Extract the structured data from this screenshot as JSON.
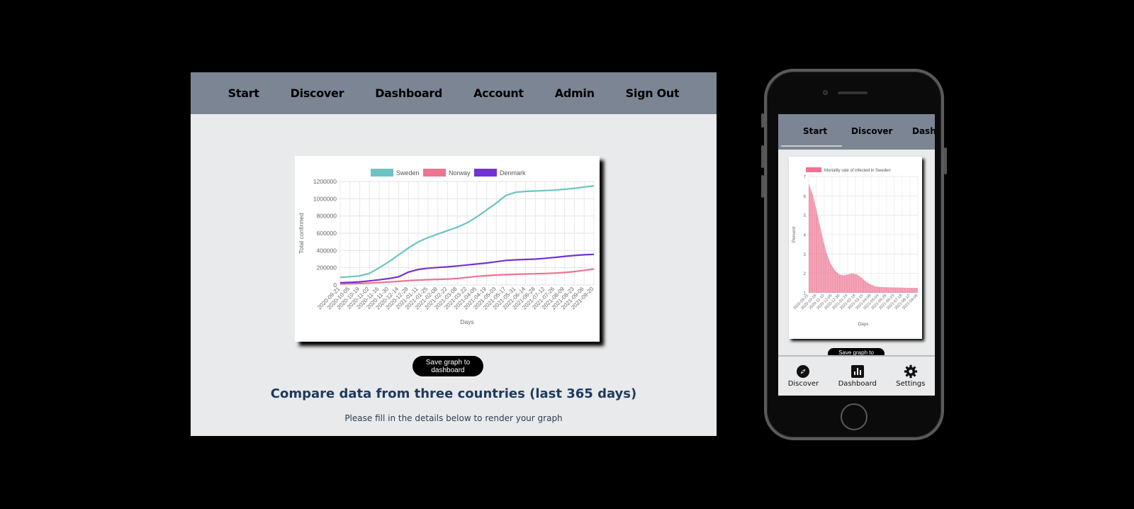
{
  "desktop": {
    "nav": [
      "Start",
      "Discover",
      "Dashboard",
      "Account",
      "Admin",
      "Sign Out"
    ],
    "save_button": "Save graph to dashboard",
    "heading": "Compare data from three countries (last 365 days)",
    "subheading": "Please fill in the details below to render your graph"
  },
  "mobile": {
    "nav": [
      "Start",
      "Discover",
      "Dashboard"
    ],
    "save_button": "Save graph to dashboard",
    "tabs": [
      {
        "label": "Discover",
        "icon": "compass-icon"
      },
      {
        "label": "Dashboard",
        "icon": "bar-chart-icon"
      },
      {
        "label": "Settings",
        "icon": "gear-icon"
      }
    ]
  },
  "colors": {
    "nav_bg": "#7b8593",
    "page_bg": "#e9eaeb",
    "sweden": "#6dc3c3",
    "norway": "#ec7490",
    "denmark": "#7233d2",
    "heading": "#1e3a5f"
  },
  "chart_data": [
    {
      "type": "line",
      "title": "",
      "xlabel": "Days",
      "ylabel": "Total confirmed",
      "ylim": [
        0,
        1200000
      ],
      "y_ticks": [
        0,
        200000,
        400000,
        600000,
        800000,
        1000000,
        1200000
      ],
      "legend_position": "top",
      "grid": true,
      "x": [
        "2020-09-21",
        "2020-10-05",
        "2020-10-19",
        "2020-11-02",
        "2020-11-16",
        "2020-11-30",
        "2020-12-14",
        "2020-12-28",
        "2021-01-11",
        "2021-01-25",
        "2021-02-08",
        "2021-02-22",
        "2021-03-08",
        "2021-03-22",
        "2021-04-05",
        "2021-04-19",
        "2021-05-03",
        "2021-05-17",
        "2021-05-31",
        "2021-06-14",
        "2021-06-28",
        "2021-07-12",
        "2021-07-26",
        "2021-08-09",
        "2021-08-23",
        "2021-09-06",
        "2021-09-20"
      ],
      "series": [
        {
          "name": "Sweden",
          "color": "#6dc3c3",
          "values": [
            88000,
            96000,
            105000,
            135000,
            200000,
            270000,
            350000,
            430000,
            500000,
            550000,
            590000,
            630000,
            670000,
            720000,
            790000,
            870000,
            950000,
            1040000,
            1075000,
            1085000,
            1090000,
            1095000,
            1100000,
            1110000,
            1120000,
            1135000,
            1150000
          ]
        },
        {
          "name": "Norway",
          "color": "#ec7490",
          "values": [
            13000,
            15000,
            17000,
            22000,
            28000,
            35000,
            42000,
            50000,
            57000,
            62000,
            65000,
            69000,
            75000,
            88000,
            100000,
            108000,
            115000,
            120000,
            124000,
            127000,
            130000,
            133000,
            138000,
            145000,
            155000,
            170000,
            185000
          ]
        },
        {
          "name": "Denmark",
          "color": "#7233d2",
          "values": [
            26000,
            30000,
            36000,
            48000,
            60000,
            75000,
            95000,
            150000,
            180000,
            195000,
            203000,
            210000,
            220000,
            232000,
            243000,
            255000,
            270000,
            285000,
            292000,
            296000,
            300000,
            310000,
            320000,
            332000,
            342000,
            350000,
            355000
          ]
        }
      ]
    },
    {
      "type": "bar",
      "title": "",
      "xlabel": "Days",
      "ylabel": "Percent",
      "ylim": [
        1,
        7
      ],
      "y_ticks": [
        1,
        2,
        3,
        4,
        5,
        6,
        7
      ],
      "legend_position": "top",
      "grid": true,
      "x_tick_labels": [
        "2020-09-21",
        "2020-10-16",
        "2020-11-10",
        "2020-12-05",
        "2020-12-30",
        "2021-01-24",
        "2021-02-18",
        "2021-03-15",
        "2021-04-09",
        "2021-05-04",
        "2021-05-29",
        "2021-06-23",
        "2021-07-18",
        "2021-08-12",
        "2021-09-06"
      ],
      "series": [
        {
          "name": "Mortality rate of infected in Sweden",
          "color": "#ec7490",
          "anchors": [
            [
              0,
              6.6
            ],
            [
              8,
              6.0
            ],
            [
              16,
              5.0
            ],
            [
              24,
              4.0
            ],
            [
              32,
              3.1
            ],
            [
              40,
              2.5
            ],
            [
              48,
              2.15
            ],
            [
              56,
              1.95
            ],
            [
              64,
              1.9
            ],
            [
              72,
              1.95
            ],
            [
              80,
              2.0
            ],
            [
              88,
              1.95
            ],
            [
              96,
              1.8
            ],
            [
              104,
              1.6
            ],
            [
              112,
              1.45
            ],
            [
              120,
              1.35
            ],
            [
              130,
              1.3
            ],
            [
              150,
              1.28
            ],
            [
              180,
              1.26
            ],
            [
              200,
              1.25
            ]
          ]
        }
      ]
    }
  ]
}
